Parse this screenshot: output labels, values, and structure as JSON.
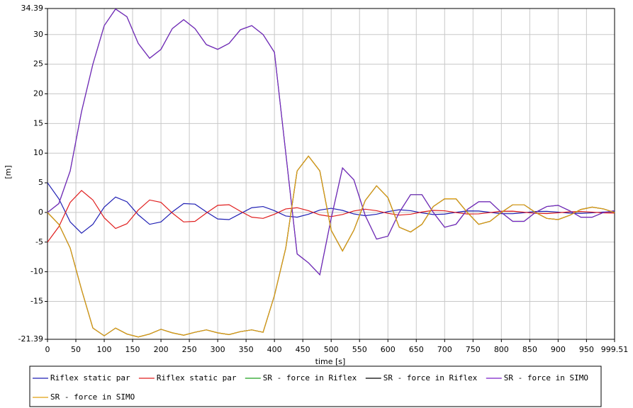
{
  "chart_data": {
    "type": "line",
    "x_label": "time [s]",
    "y_label": "[m]",
    "x": [
      0,
      20,
      40,
      60,
      80,
      100,
      120,
      140,
      160,
      180,
      200,
      220,
      240,
      260,
      280,
      300,
      320,
      340,
      360,
      380,
      400,
      420,
      440,
      460,
      480,
      500,
      520,
      540,
      560,
      580,
      600,
      620,
      640,
      660,
      680,
      700,
      720,
      740,
      760,
      780,
      800,
      820,
      840,
      860,
      880,
      900,
      920,
      940,
      960,
      980,
      999.51
    ],
    "xlim": [
      0,
      999.51
    ],
    "xticks": [
      0,
      50,
      100,
      150,
      200,
      250,
      300,
      350,
      400,
      450,
      500,
      550,
      600,
      650,
      700,
      750,
      800,
      850,
      900,
      950,
      999.51
    ],
    "ylim": [
      -21.39,
      34.39
    ],
    "yticks": [
      -21.39,
      -15,
      -10,
      -5,
      0,
      5,
      10,
      15,
      20,
      25,
      30,
      34.39
    ],
    "grid": true,
    "series": [
      {
        "name": "Riflex static par",
        "color": "#1f1fb4",
        "values": [
          5,
          2.3,
          -1.6,
          -3.5,
          -2.0,
          0.9,
          2.6,
          1.8,
          -0.4,
          -2.0,
          -1.6,
          0.1,
          1.5,
          1.4,
          0.1,
          -1.1,
          -1.2,
          -0.2,
          0.8,
          1.0,
          0.3,
          -0.6,
          -0.8,
          -0.3,
          0.4,
          0.7,
          0.35,
          -0.25,
          -0.55,
          -0.3,
          0.15,
          0.45,
          0.3,
          -0.08,
          -0.35,
          -0.28,
          0.02,
          0.26,
          0.24,
          0.02,
          -0.2,
          -0.21,
          -0.04,
          0.15,
          0.19,
          0.06,
          -0.11,
          -0.16,
          -0.06,
          0.07,
          0.1
        ]
      },
      {
        "name": "Riflex static par",
        "color": "#e01e1e",
        "values": [
          -5,
          -2.4,
          1.7,
          3.7,
          2.1,
          -0.9,
          -2.7,
          -1.9,
          0.4,
          2.1,
          1.7,
          -0.1,
          -1.6,
          -1.5,
          -0.1,
          1.2,
          1.3,
          0.2,
          -0.8,
          -1.0,
          -0.3,
          0.6,
          0.8,
          0.3,
          -0.4,
          -0.7,
          -0.35,
          0.25,
          0.55,
          0.3,
          -0.15,
          -0.45,
          -0.3,
          0.08,
          0.35,
          0.28,
          -0.02,
          -0.26,
          -0.24,
          -0.02,
          0.2,
          0.21,
          0.04,
          -0.15,
          -0.19,
          -0.06,
          0.11,
          0.16,
          0.06,
          -0.07,
          -0.1
        ]
      },
      {
        "name": "SR - force in Riflex",
        "color": "#1ea01e",
        "values": [
          0,
          1.5,
          7,
          17,
          25,
          31.5,
          34.3,
          33,
          28.5,
          26,
          27.5,
          31,
          32.5,
          31,
          28.3,
          27.5,
          28.5,
          30.8,
          31.5,
          30,
          27,
          10,
          -7,
          -8.5,
          -10.5,
          -1,
          7.5,
          5.5,
          -0.5,
          -4.5,
          -4,
          0,
          3,
          3,
          0,
          -2.5,
          -2,
          0.5,
          1.8,
          1.8,
          0,
          -1.5,
          -1.5,
          0,
          1,
          1.2,
          0.3,
          -0.8,
          -0.8,
          0,
          0.3
        ]
      },
      {
        "name": "SR - force in Riflex",
        "color": "#000000",
        "values": [
          0,
          -2,
          -6,
          -13,
          -19.5,
          -20.8,
          -19.5,
          -20.5,
          -21,
          -20.5,
          -19.7,
          -20.3,
          -20.7,
          -20.2,
          -19.8,
          -20.3,
          -20.6,
          -20.1,
          -19.8,
          -20.2,
          -14,
          -6,
          7,
          9.5,
          7,
          -3,
          -6.5,
          -3,
          2,
          4.5,
          2.5,
          -2.5,
          -3.3,
          -2,
          1,
          2.3,
          2.3,
          0,
          -2,
          -1.5,
          0,
          1.3,
          1.3,
          0,
          -1,
          -1.2,
          -0.5,
          0.5,
          0.9,
          0.6,
          0
        ]
      },
      {
        "name": "SR - force in SIMO",
        "color": "#7a1fc8",
        "values": [
          0,
          1.5,
          7,
          17,
          25,
          31.5,
          34.3,
          33,
          28.5,
          26,
          27.5,
          31,
          32.5,
          31,
          28.3,
          27.5,
          28.5,
          30.8,
          31.5,
          30,
          27,
          10,
          -7,
          -8.5,
          -10.5,
          -1,
          7.5,
          5.5,
          -0.5,
          -4.5,
          -4,
          0,
          3,
          3,
          0,
          -2.5,
          -2,
          0.5,
          1.8,
          1.8,
          0,
          -1.5,
          -1.5,
          0,
          1,
          1.2,
          0.3,
          -0.8,
          -0.8,
          0,
          0.3
        ]
      },
      {
        "name": "SR - force in SIMO",
        "color": "#e0a010",
        "values": [
          0,
          -2,
          -6,
          -13,
          -19.5,
          -20.8,
          -19.5,
          -20.5,
          -21,
          -20.5,
          -19.7,
          -20.3,
          -20.7,
          -20.2,
          -19.8,
          -20.3,
          -20.6,
          -20.1,
          -19.8,
          -20.2,
          -14,
          -6,
          7,
          9.5,
          7,
          -3,
          -6.5,
          -3,
          2,
          4.5,
          2.5,
          -2.5,
          -3.3,
          -2,
          1,
          2.3,
          2.3,
          0,
          -2,
          -1.5,
          0,
          1.3,
          1.3,
          0,
          -1,
          -1.2,
          -0.5,
          0.5,
          0.9,
          0.6,
          0
        ]
      }
    ]
  }
}
